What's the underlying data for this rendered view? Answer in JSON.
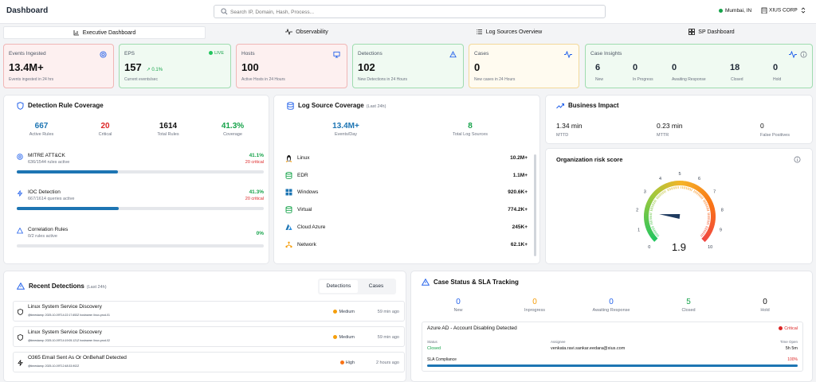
{
  "header": {
    "title": "Dashboard",
    "search_placeholder": "Search IP, Domain, Hash, Process...",
    "location": "Mumbai, IN",
    "org": "XIUS CORP"
  },
  "tabs": [
    {
      "label": "Executive Dashboard"
    },
    {
      "label": "Observability"
    },
    {
      "label": "Log Sources Overview"
    },
    {
      "label": "SP Dashboard"
    }
  ],
  "kpis": [
    {
      "label": "Events Ingested",
      "value": "13.4M+",
      "sub": "Events ingested in 24 hrs"
    },
    {
      "label": "EPS",
      "value": "157",
      "delta": "0.1%",
      "live": "LIVE",
      "sub": "Current events/sec"
    },
    {
      "label": "Hosts",
      "value": "100",
      "sub": "Active Hosts in 24 Hours"
    },
    {
      "label": "Detections",
      "value": "102",
      "sub": "New Detections in 24 Hours"
    },
    {
      "label": "Cases",
      "value": "0",
      "sub": "New cases in 24 Hours"
    }
  ],
  "case_insights": {
    "label": "Case Insights",
    "items": [
      {
        "n": "6",
        "l": "New"
      },
      {
        "n": "0",
        "l": "In Progress"
      },
      {
        "n": "0",
        "l": "Awaiting Response"
      },
      {
        "n": "18",
        "l": "Closed"
      },
      {
        "n": "0",
        "l": "Hold"
      }
    ]
  },
  "detection_coverage": {
    "title": "Detection Rule Coverage",
    "stats": [
      {
        "n": "667",
        "l": "Active Rules"
      },
      {
        "n": "20",
        "l": "Critical"
      },
      {
        "n": "1614",
        "l": "Total Rules"
      },
      {
        "n": "41.3%",
        "l": "Coverage"
      }
    ],
    "rules": [
      {
        "name": "MITRE ATT&CK",
        "desc": "636/1544 rules active",
        "pct": "41.1%",
        "crit": "20 critical",
        "fill": 0.411
      },
      {
        "name": "IOC Detection",
        "desc": "667/1614 queries active",
        "pct": "41.3%",
        "crit": "20 critical",
        "fill": 0.413
      },
      {
        "name": "Correlation Rules",
        "desc": "0/2 rules active",
        "pct": "0%",
        "crit": "",
        "fill": 0
      }
    ]
  },
  "log_source": {
    "title": "Log Source Coverage",
    "subtitle": "(Last 24h)",
    "stats": [
      {
        "n": "13.4M+",
        "l": "Events/Day"
      },
      {
        "n": "8",
        "l": "Total Log Sources"
      }
    ],
    "sources": [
      {
        "name": "Linux",
        "v": "10.2M+"
      },
      {
        "name": "EDR",
        "v": "1.1M+"
      },
      {
        "name": "Windows",
        "v": "920.6K+"
      },
      {
        "name": "Virtual",
        "v": "774.2K+"
      },
      {
        "name": "Cloud Azure",
        "v": "245K+"
      },
      {
        "name": "Network",
        "v": "62.1K+"
      }
    ]
  },
  "business_impact": {
    "title": "Business Impact",
    "items": [
      {
        "n": "1.34 min",
        "l": "MTTD"
      },
      {
        "n": "0.23 min",
        "l": "MTTR"
      },
      {
        "n": "0",
        "l": "False Positives"
      }
    ]
  },
  "risk": {
    "title": "Organization risk score",
    "value": "1.9",
    "score": 1.9,
    "ticks": [
      "0",
      "1",
      "2",
      "3",
      "4",
      "5",
      "6",
      "7",
      "8",
      "9",
      "10"
    ]
  },
  "recent_detections": {
    "title": "Recent Detections",
    "subtitle": "(Last 24h)",
    "tabs": [
      "Detections",
      "Cases"
    ],
    "items": [
      {
        "title": "Linux System Service Discovery",
        "hash": "@timestamp: 2025-10-09T14:22:17.653Z    hostname: linux-prod-01",
        "sev": "Medium",
        "time": "59 min ago"
      },
      {
        "title": "Linux System Service Discovery",
        "hash": "@timestamp: 2025-10-09T14:19:05.121Z    hostname: linux-prod-02",
        "sev": "Medium",
        "time": "59 min ago"
      },
      {
        "title": "O365 Email Sent As Or OnBehalf Detected",
        "hash": "@timestamp: 2025-10-09T12:48:33.902Z",
        "sev": "High",
        "time": "2 hours ago"
      }
    ]
  },
  "case_status": {
    "title": "Case Status & SLA Tracking",
    "stats": [
      {
        "n": "0",
        "l": "New",
        "c": "#2563eb"
      },
      {
        "n": "0",
        "l": "Inprogress",
        "c": "#f59e0b"
      },
      {
        "n": "0",
        "l": "Awaiting Response",
        "c": "#2563eb"
      },
      {
        "n": "5",
        "l": "Closed",
        "c": "#16a34a"
      },
      {
        "n": "0",
        "l": "Hold",
        "c": "#111111"
      }
    ],
    "case": {
      "title": "Azure AD - Account Disabling Detected",
      "priority": "Critical",
      "status_label": "Status",
      "status": "Closed",
      "assignee_label": "Assignee",
      "assignee": "venkata.ravi.sankar.eedara@xius.com",
      "time_label": "Time Open",
      "time": "5h 5m",
      "sla_label": "SLA Compliance",
      "sla": "100%",
      "sla_fill": 1
    }
  },
  "colors": {
    "accent": "#1d75b3",
    "green": "#16a34a",
    "red": "#dc2626",
    "amber": "#f59e0b"
  }
}
